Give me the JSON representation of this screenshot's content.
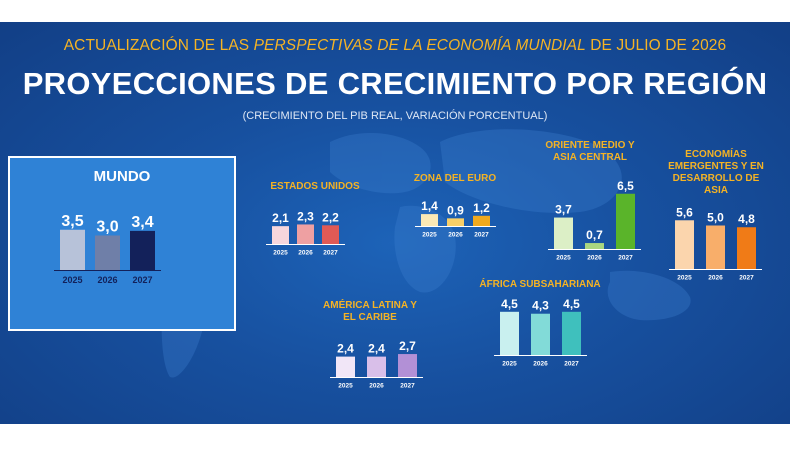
{
  "header": {
    "top_line_pre": "ACTUALIZACIÓN DE LAS ",
    "top_line_italic": "PERSPECTIVAS DE LA ECONOMÍA MUNDIAL",
    "top_line_post": " DE JULIO DE 2026",
    "title": "PROYECCIONES DE CRECIMIENTO POR REGIÓN",
    "subtitle": "(CRECIMIENTO DEL PIB REAL, VARIACIÓN PORCENTUAL)"
  },
  "regions": {
    "world": "MUNDO",
    "us": "ESTADOS UNIDOS",
    "euro": "ZONA DEL EURO",
    "mideast_l1": "ORIENTE MEDIO Y",
    "mideast_l2": "ASIA CENTRAL",
    "emerging_l1": "ECONOMÍAS",
    "emerging_l2": "EMERGENTES Y EN",
    "emerging_l3": "DESARROLLO DE ASIA",
    "latam_l1": "AMÉRICA LATINA Y",
    "latam_l2": "EL CARIBE",
    "africa": "ÁFRICA SUBSAHARIANA"
  },
  "chart_data": [
    {
      "type": "bar",
      "id": "world",
      "categories": [
        "2025",
        "2026",
        "2027"
      ],
      "values": [
        "3,5",
        "3,0",
        "3,4"
      ],
      "colors": [
        "#b7c2d9",
        "#6f7fa8",
        "#13215a"
      ]
    },
    {
      "type": "bar",
      "id": "us",
      "categories": [
        "2025",
        "2026",
        "2027"
      ],
      "values": [
        "2,1",
        "2,3",
        "2,2"
      ],
      "colors": [
        "#f7d6dc",
        "#eea0a2",
        "#e05a55"
      ]
    },
    {
      "type": "bar",
      "id": "euro",
      "categories": [
        "2025",
        "2026",
        "2027"
      ],
      "values": [
        "1,4",
        "0,9",
        "1,2"
      ],
      "colors": [
        "#fbe9b5",
        "#f8cf68",
        "#f0a91e"
      ]
    },
    {
      "type": "bar",
      "id": "mideast",
      "categories": [
        "2025",
        "2026",
        "2027"
      ],
      "values": [
        "3,7",
        "0,7",
        "6,5"
      ],
      "colors": [
        "#dcefc6",
        "#a9d680",
        "#5ab42a"
      ]
    },
    {
      "type": "bar",
      "id": "emerging",
      "categories": [
        "2025",
        "2026",
        "2027"
      ],
      "values": [
        "5,6",
        "5,0",
        "4,8"
      ],
      "colors": [
        "#fbd5ad",
        "#f8ae6a",
        "#f07b17"
      ]
    },
    {
      "type": "bar",
      "id": "latam",
      "categories": [
        "2025",
        "2026",
        "2027"
      ],
      "values": [
        "2,4",
        "2,4",
        "2,7"
      ],
      "colors": [
        "#f1e6f7",
        "#d9bfe9",
        "#b290d6"
      ]
    },
    {
      "type": "bar",
      "id": "africa",
      "categories": [
        "2025",
        "2026",
        "2027"
      ],
      "values": [
        "4,5",
        "4,3",
        "4,5"
      ],
      "colors": [
        "#c9f0ef",
        "#82dbd8",
        "#3fc0bd"
      ]
    }
  ]
}
